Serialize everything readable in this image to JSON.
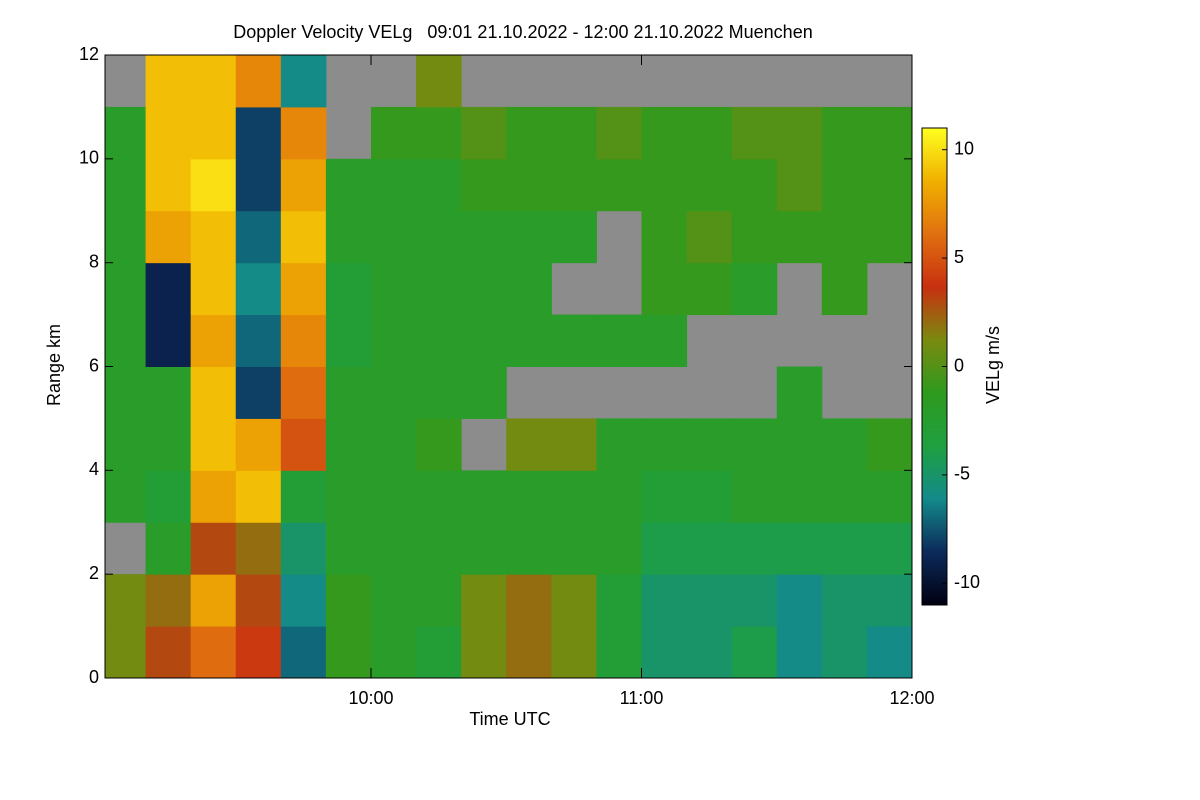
{
  "chart_data": {
    "type": "heatmap",
    "title": "Doppler Velocity VELg   09:01 21.10.2022 - 12:00 21.10.2022 Muenchen",
    "xlabel": "Time UTC",
    "ylabel": "Range km",
    "colorbar_label": "VELg m/s",
    "x": [
      "09:01",
      "09:10",
      "09:20",
      "09:30",
      "09:40",
      "09:50",
      "10:00",
      "10:10",
      "10:20",
      "10:30",
      "10:40",
      "10:50",
      "11:00",
      "11:10",
      "11:20",
      "11:30",
      "11:40",
      "11:50",
      "12:00"
    ],
    "y": [
      0,
      1,
      2,
      3,
      4,
      5,
      6,
      7,
      8,
      9,
      10,
      11,
      12
    ],
    "xlim": [
      "09:01",
      "12:00"
    ],
    "xticks": [
      "10:00",
      "11:00",
      "12:00"
    ],
    "ylim": [
      0,
      12
    ],
    "yticks": [
      0,
      2,
      4,
      6,
      8,
      10,
      12
    ],
    "clim": [
      -11,
      11
    ],
    "cticks": [
      -10,
      -5,
      0,
      5,
      10
    ],
    "colormap": [
      "#000010",
      "#0c2a5a",
      "#138a8a",
      "#1fa040",
      "#2e9a1e",
      "#7a8a10",
      "#c83010",
      "#e07010",
      "#f0b000",
      "#ffff20"
    ],
    "missing_color": "#8c8c8c",
    "z": [
      [
        1,
        3,
        6,
        4,
        -7,
        -1,
        -2,
        -3,
        1,
        2,
        1,
        -3,
        -5,
        -5,
        -4,
        -6,
        -5,
        -6
      ],
      [
        1,
        2,
        8,
        3,
        -6,
        -1,
        -2,
        -2,
        1,
        2,
        1,
        -3,
        -5,
        -5,
        -5,
        -6,
        -5,
        -5
      ],
      [
        null,
        -2,
        3,
        2,
        -5,
        -2,
        -2,
        -2,
        -2,
        -2,
        -2,
        -2,
        -4,
        -4,
        -4,
        -4,
        -4,
        -4
      ],
      [
        -2,
        -3,
        8,
        9,
        -3,
        -2,
        -2,
        -2,
        -2,
        -2,
        -2,
        -2,
        -3,
        -3,
        -2,
        -2,
        -2,
        -2
      ],
      [
        -2,
        -2,
        9,
        8,
        5,
        -2,
        -2,
        -1,
        null,
        1,
        1,
        -2,
        -2,
        -2,
        -2,
        -2,
        -2,
        -1
      ],
      [
        -2,
        -2,
        9,
        -8,
        6,
        -2,
        -2,
        -2,
        -2,
        null,
        null,
        null,
        null,
        null,
        null,
        -2,
        null,
        null
      ],
      [
        -2,
        -9,
        8,
        -7,
        7,
        -3,
        -2,
        -2,
        -2,
        -2,
        -2,
        -2,
        -2,
        null,
        null,
        null,
        null,
        null
      ],
      [
        -2,
        -9,
        9,
        -6,
        8,
        -3,
        -2,
        -2,
        -2,
        -2,
        null,
        null,
        -1,
        -1,
        -2,
        null,
        -1,
        null
      ],
      [
        -2,
        8,
        9,
        -7,
        9,
        -2,
        -2,
        -2,
        -2,
        -2,
        -2,
        null,
        -1,
        0,
        -1,
        -1,
        -1,
        -1
      ],
      [
        -2,
        9,
        10,
        -8,
        8,
        -2,
        -2,
        -2,
        -1,
        -1,
        -1,
        -1,
        -1,
        -1,
        -1,
        0,
        -1,
        -1
      ],
      [
        -2,
        9,
        9,
        -8,
        7,
        null,
        -1,
        -1,
        0,
        -1,
        -1,
        0,
        -1,
        -1,
        0,
        0,
        -1,
        -1
      ],
      [
        null,
        9,
        9,
        7,
        -6,
        null,
        null,
        1,
        null,
        null,
        null,
        null,
        null,
        null,
        null,
        null,
        null,
        null
      ]
    ]
  }
}
